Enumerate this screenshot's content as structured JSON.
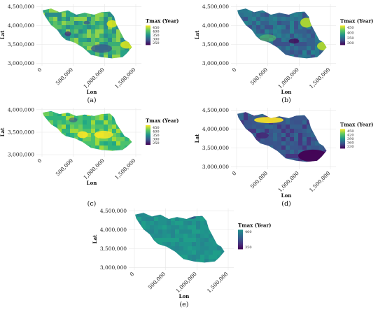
{
  "figure": {
    "panels": [
      {
        "label": "(a)",
        "xlabel": "Lon",
        "ylabel": "Lat",
        "yticks": [
          "3,000,000",
          "3,500,000",
          "4,000,000",
          "4,500,000"
        ],
        "xticks": [
          "0",
          "500,000",
          "1,000,000",
          "1,500,000"
        ],
        "legend": {
          "title": "Tmax (Year)",
          "ticks": [
            "450",
            "400",
            "350",
            "300",
            "250"
          ]
        },
        "palette": "viridis-mixed"
      },
      {
        "label": "(b)",
        "xlabel": "Lon",
        "ylabel": "Lat",
        "yticks": [
          "3,000,000",
          "3,500,000",
          "4,000,000",
          "4,500,000"
        ],
        "xticks": [
          "0",
          "500,000",
          "1,000,000",
          "1,500,000"
        ],
        "legend": {
          "title": "Tmax (Year)",
          "ticks": [
            "450",
            "400",
            "350",
            "300"
          ]
        },
        "palette": "viridis-blue"
      },
      {
        "label": "(c)",
        "xlabel": "Lon",
        "ylabel": "Lat",
        "yticks": [
          "3,000,000",
          "3,500,000",
          "4,000,000"
        ],
        "xticks": [
          "0",
          "500,000",
          "1,000,000",
          "1,500,000"
        ],
        "legend": {
          "title": "Tmax (Year)",
          "ticks": [
            "450",
            "400",
            "350",
            "300",
            "250"
          ]
        },
        "palette": "viridis-green"
      },
      {
        "label": "(d)",
        "xlabel": "Lon",
        "ylabel": "Lat",
        "yticks": [
          "3,000,000",
          "3,500,000",
          "4,000,000",
          "4,500,000"
        ],
        "xticks": [
          "0",
          "500,000",
          "1,000,000",
          "1,500,000"
        ],
        "legend": {
          "title": "Tmax (Year)",
          "ticks": [
            "450",
            "420",
            "390",
            "360",
            "330"
          ]
        },
        "palette": "viridis-dark"
      },
      {
        "label": "(e)",
        "xlabel": "Lon",
        "ylabel": "Lat",
        "yticks": [
          "3,000,000",
          "3,500,000",
          "4,000,000",
          "4,500,000"
        ],
        "xticks": [
          "0",
          "500,000",
          "1,000,000",
          "1,500,000"
        ],
        "legend": {
          "title": "Tmax (Year)",
          "ticks": [
            "400",
            "350"
          ]
        },
        "palette": "viridis-flat"
      }
    ]
  },
  "chart_data": [
    {
      "type": "heatmap",
      "title": "",
      "xlabel": "Lon",
      "ylabel": "Lat",
      "x_ticks": [
        0,
        500000,
        1000000,
        1500000
      ],
      "y_ticks": [
        3000000,
        3500000,
        4000000,
        4500000
      ],
      "legend": "Tmax (Year)",
      "colorbar_ticks": [
        450,
        400,
        350,
        300,
        250
      ],
      "colormap": "viridis"
    },
    {
      "type": "heatmap",
      "title": "",
      "xlabel": "Lon",
      "ylabel": "Lat",
      "x_ticks": [
        0,
        500000,
        1000000,
        1500000
      ],
      "y_ticks": [
        3000000,
        3500000,
        4000000,
        4500000
      ],
      "legend": "Tmax (Year)",
      "colorbar_ticks": [
        450,
        400,
        350,
        300
      ],
      "colormap": "viridis"
    },
    {
      "type": "heatmap",
      "title": "",
      "xlabel": "Lon",
      "ylabel": "Lat",
      "x_ticks": [
        0,
        500000,
        1000000,
        1500000
      ],
      "y_ticks": [
        3000000,
        3500000,
        4000000
      ],
      "legend": "Tmax (Year)",
      "colorbar_ticks": [
        450,
        400,
        350,
        300,
        250
      ],
      "colormap": "viridis"
    },
    {
      "type": "heatmap",
      "title": "",
      "xlabel": "Lon",
      "ylabel": "Lat",
      "x_ticks": [
        0,
        500000,
        1000000,
        1500000
      ],
      "y_ticks": [
        3000000,
        3500000,
        4000000,
        4500000
      ],
      "legend": "Tmax (Year)",
      "colorbar_ticks": [
        450,
        420,
        390,
        360,
        330
      ],
      "colormap": "viridis"
    },
    {
      "type": "heatmap",
      "title": "",
      "xlabel": "Lon",
      "ylabel": "Lat",
      "x_ticks": [
        0,
        500000,
        1000000,
        1500000
      ],
      "y_ticks": [
        3000000,
        3500000,
        4000000,
        4500000
      ],
      "legend": "Tmax (Year)",
      "colorbar_ticks": [
        400,
        350
      ],
      "colormap": "viridis"
    }
  ]
}
